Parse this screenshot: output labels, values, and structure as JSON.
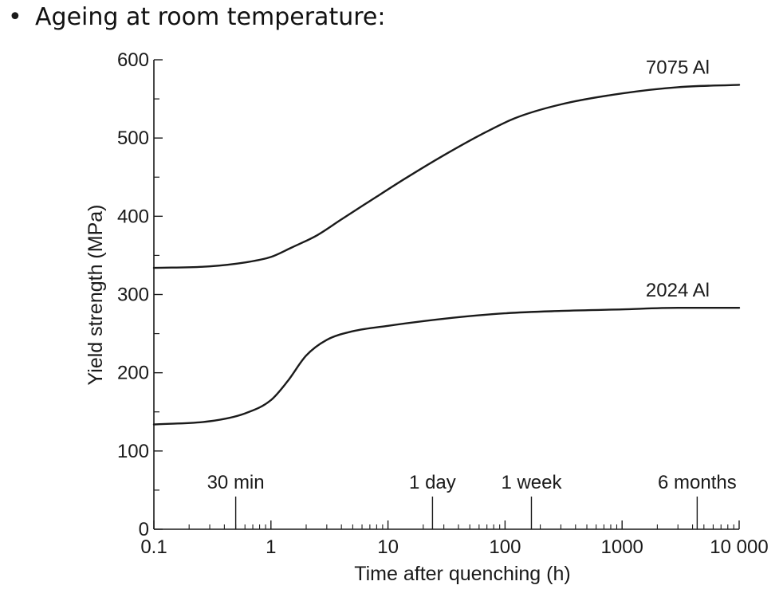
{
  "slide": {
    "bullet": "•",
    "title": "Ageing at room temperature:"
  },
  "chart_data": {
    "type": "line",
    "title": "",
    "xlabel": "Time after quenching (h)",
    "ylabel": "Yield strength (MPa)",
    "x_scale": "log",
    "xlim": [
      0.1,
      10000
    ],
    "ylim": [
      0,
      600
    ],
    "x_ticks": [
      {
        "value": 0.1,
        "label": "0.1"
      },
      {
        "value": 1,
        "label": "1"
      },
      {
        "value": 10,
        "label": "10"
      },
      {
        "value": 100,
        "label": "100"
      },
      {
        "value": 1000,
        "label": "1000"
      },
      {
        "value": 10000,
        "label": "10 000"
      }
    ],
    "y_ticks": [
      {
        "value": 0,
        "label": "0"
      },
      {
        "value": 100,
        "label": "100"
      },
      {
        "value": 200,
        "label": "200"
      },
      {
        "value": 300,
        "label": "300"
      },
      {
        "value": 400,
        "label": "400"
      },
      {
        "value": 500,
        "label": "500"
      },
      {
        "value": 600,
        "label": "600"
      }
    ],
    "y_minor_step": 50,
    "time_markers": [
      {
        "label": "30 min",
        "x": 0.5
      },
      {
        "label": "1 day",
        "x": 24
      },
      {
        "label": "1 week",
        "x": 168
      },
      {
        "label": "6 months",
        "x": 4380
      }
    ],
    "series": [
      {
        "name": "7075 Al",
        "color": "#1a1a1a",
        "points": [
          [
            0.1,
            334
          ],
          [
            0.3,
            336
          ],
          [
            0.6,
            341
          ],
          [
            1,
            348
          ],
          [
            1.5,
            360
          ],
          [
            2.5,
            376
          ],
          [
            4,
            396
          ],
          [
            8,
            425
          ],
          [
            15,
            451
          ],
          [
            30,
            478
          ],
          [
            60,
            503
          ],
          [
            120,
            525
          ],
          [
            300,
            543
          ],
          [
            1000,
            557
          ],
          [
            3000,
            565
          ],
          [
            10000,
            568
          ]
        ]
      },
      {
        "name": "2024 Al",
        "color": "#1a1a1a",
        "points": [
          [
            0.1,
            134
          ],
          [
            0.3,
            138
          ],
          [
            0.6,
            148
          ],
          [
            1,
            165
          ],
          [
            1.4,
            190
          ],
          [
            2,
            222
          ],
          [
            3,
            242
          ],
          [
            5,
            253
          ],
          [
            10,
            260
          ],
          [
            30,
            269
          ],
          [
            100,
            276
          ],
          [
            300,
            279
          ],
          [
            1000,
            281
          ],
          [
            3000,
            283
          ],
          [
            10000,
            283
          ]
        ]
      }
    ]
  }
}
